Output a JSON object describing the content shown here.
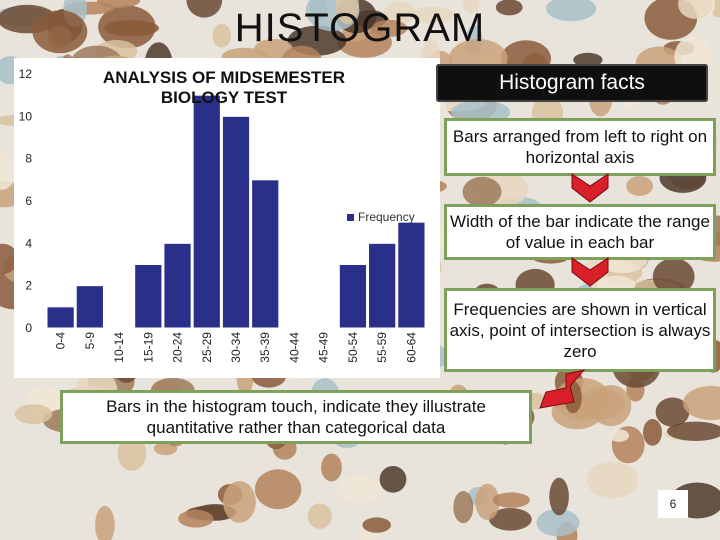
{
  "slide": {
    "title": "HISTOGRAM",
    "page_number": "6"
  },
  "facts": {
    "header": "Histogram facts",
    "items": [
      "Bars arranged from left to right on horizontal axis",
      "Width of the bar indicate the range of value in each bar",
      "Frequencies are shown in vertical axis, point of intersection is always zero",
      "Bars in the histogram touch, indicate they illustrate quantitative rather than categorical data"
    ]
  },
  "colors": {
    "bar": "#2a2f8a",
    "arrow": "#d81f2a",
    "fact_border": "#7da15a",
    "header_bg": "#0f0f10"
  },
  "chart_data": {
    "type": "bar",
    "title": "ANALYSIS OF MIDSEMESTER BIOLOGY TEST",
    "categories": [
      "0-4",
      "5-9",
      "10-14",
      "15-19",
      "20-24",
      "25-29",
      "30-34",
      "35-39",
      "40-44",
      "45-49",
      "50-54",
      "55-59",
      "60-64"
    ],
    "series": [
      {
        "name": "Frequency",
        "values": [
          1,
          2,
          0,
          3,
          4,
          11,
          10,
          7,
          0,
          0,
          3,
          4,
          5
        ]
      }
    ],
    "ylim": [
      0,
      12
    ],
    "yticks": [
      0,
      2,
      4,
      6,
      8,
      10,
      12
    ],
    "grid": false,
    "legend": "right",
    "xlabel": "",
    "ylabel": ""
  }
}
